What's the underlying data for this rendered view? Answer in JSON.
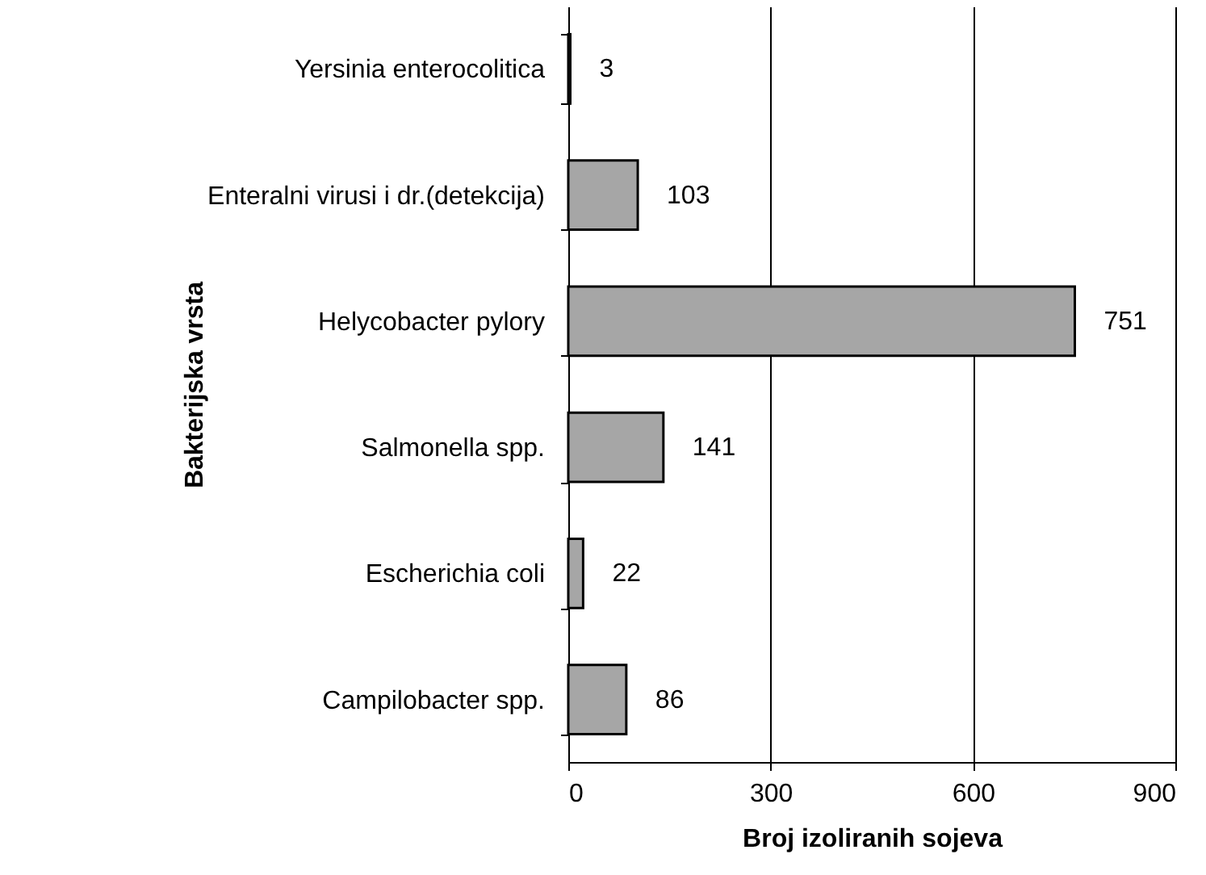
{
  "chart_data": {
    "type": "bar",
    "orientation": "horizontal",
    "xlabel": "Broj izoliranih sojeva",
    "ylabel": "Bakterijska vrsta",
    "categories": [
      "Yersinia enterocolitica",
      "Enteralni virusi i dr.(detekcija)",
      "Helycobacter pylory",
      "Salmonella spp.",
      "Escherichia coli",
      "Campilobacter spp."
    ],
    "values": [
      3,
      103,
      751,
      141,
      22,
      86
    ],
    "color": "#a6a6a6",
    "xlim": [
      0,
      900
    ],
    "xticks": [
      0,
      300,
      600,
      900
    ],
    "grid": "x",
    "data_labels": true
  }
}
